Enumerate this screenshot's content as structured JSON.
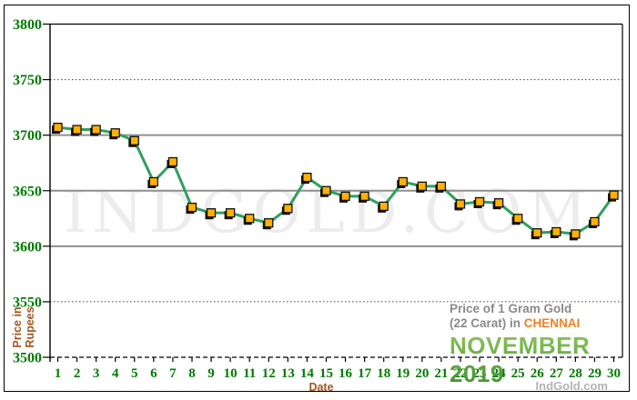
{
  "chart_data": {
    "type": "line",
    "title": "Price of 1 Gram Gold (22 Carat) in CHENNAI - NOVEMBER 2019",
    "xlabel": "Date",
    "ylabel": "Price in Rupees",
    "x": [
      1,
      2,
      3,
      4,
      5,
      6,
      7,
      8,
      9,
      10,
      11,
      12,
      13,
      14,
      15,
      16,
      17,
      18,
      19,
      20,
      21,
      22,
      23,
      24,
      25,
      26,
      27,
      28,
      29,
      30
    ],
    "values": [
      3707,
      3705,
      3705,
      3702,
      3695,
      3658,
      3676,
      3635,
      3630,
      3630,
      3625,
      3621,
      3634,
      3662,
      3650,
      3645,
      3645,
      3636,
      3658,
      3654,
      3654,
      3638,
      3640,
      3639,
      3625,
      3612,
      3613,
      3611,
      3622,
      3646
    ],
    "ylim": [
      3500,
      3800
    ],
    "yticks": [
      3800,
      3750,
      3700,
      3650,
      3600,
      3550,
      3500
    ],
    "grid": "horizontal",
    "legend_position": "none",
    "line_color": "#2fa05e",
    "marker_color": "#ffb102",
    "marker_border_color": "#111111",
    "axis_label_color": "#007c00",
    "gridline_color": "#8f8f8f"
  },
  "axis": {
    "x_title": "Date",
    "y_title_line1": "Price in",
    "y_title_line2": "Rupees"
  },
  "caption": {
    "line1": "Price of 1 Gram Gold",
    "line2_prefix": "(22 Carat) in ",
    "city": "CHENNAI",
    "month": "NOVEMBER 2019"
  },
  "watermark": "INDGOLD.COM",
  "brand": "IndGold.com",
  "colors": {
    "city": "#f28024",
    "month_green": "#55a33b",
    "caption_gray": "#8a8a8a",
    "axis_title_brown": "#a4571e",
    "brand_gray": "#b3b3b3"
  }
}
